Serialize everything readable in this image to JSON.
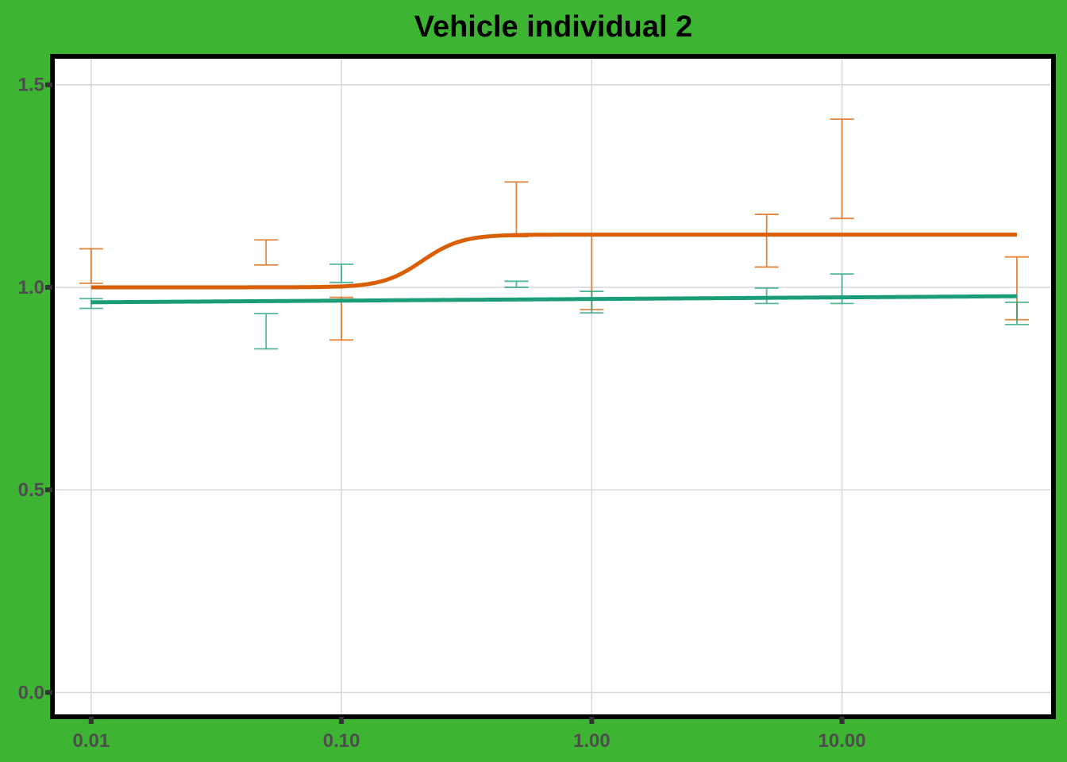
{
  "chart_data": {
    "type": "line",
    "title": "Vehicle individual 2",
    "xlabel": "",
    "ylabel": "",
    "x_scale": "log10",
    "xlim": [
      0.007,
      70
    ],
    "ylim": [
      -0.06,
      1.57
    ],
    "grid": true,
    "legend": "none",
    "x_ticks": [
      {
        "value": 0.01,
        "label": "0.01"
      },
      {
        "value": 0.1,
        "label": "0.10"
      },
      {
        "value": 1,
        "label": "1.00"
      },
      {
        "value": 10,
        "label": "10.00"
      }
    ],
    "y_ticks": [
      {
        "value": 0.0,
        "label": "0.0"
      },
      {
        "value": 0.5,
        "label": "0.5"
      },
      {
        "value": 1.0,
        "label": "1.0"
      },
      {
        "value": 1.5,
        "label": "1.5"
      }
    ],
    "series": [
      {
        "color": "#d95f02",
        "fit_curve": {
          "model": "logistic",
          "bottom": 1.0,
          "top": 1.13,
          "ec50": 0.21,
          "hill": 5.5,
          "x_range": [
            0.01,
            50
          ]
        },
        "error_bars": [
          {
            "x": 0.01,
            "low": 1.01,
            "high": 1.095
          },
          {
            "x": 0.05,
            "low": 1.055,
            "high": 1.117
          },
          {
            "x": 0.1,
            "low": 0.87,
            "high": 0.975
          },
          {
            "x": 0.5,
            "low": 1.125,
            "high": 1.26
          },
          {
            "x": 1,
            "low": 0.945,
            "high": 1.13
          },
          {
            "x": 5,
            "low": 1.05,
            "high": 1.18
          },
          {
            "x": 10,
            "low": 1.17,
            "high": 1.415
          },
          {
            "x": 50,
            "low": 0.92,
            "high": 1.075
          }
        ]
      },
      {
        "color": "#1b9e77",
        "fit_curve": {
          "model": "linear",
          "y_start": 0.963,
          "y_end": 0.978,
          "x_range": [
            0.01,
            50
          ]
        },
        "error_bars": [
          {
            "x": 0.01,
            "low": 0.948,
            "high": 0.972
          },
          {
            "x": 0.05,
            "low": 0.848,
            "high": 0.935
          },
          {
            "x": 0.1,
            "low": 1.012,
            "high": 1.057
          },
          {
            "x": 0.5,
            "low": 1.0,
            "high": 1.015
          },
          {
            "x": 1,
            "low": 0.937,
            "high": 0.99
          },
          {
            "x": 5,
            "low": 0.96,
            "high": 0.998
          },
          {
            "x": 10,
            "low": 0.96,
            "high": 1.033
          },
          {
            "x": 50,
            "low": 0.908,
            "high": 0.963
          }
        ]
      }
    ]
  }
}
